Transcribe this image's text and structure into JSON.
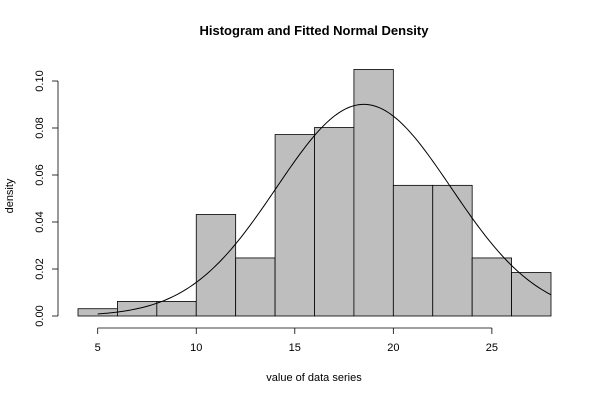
{
  "chart_data": {
    "type": "bar",
    "title": "Histogram and Fitted Normal Density",
    "xlabel": "value of data series",
    "ylabel": "density",
    "xlim": [
      4,
      28
    ],
    "ylim": [
      0,
      0.105
    ],
    "xticks": [
      5,
      10,
      15,
      20,
      25
    ],
    "yticks": [
      0.0,
      0.02,
      0.04,
      0.06,
      0.08,
      0.1
    ],
    "ytick_labels": [
      "0.00",
      "0.02",
      "0.04",
      "0.06",
      "0.08",
      "0.10"
    ],
    "grid": false,
    "bins": [
      {
        "from": 4,
        "to": 6,
        "density": 0.0031
      },
      {
        "from": 6,
        "to": 8,
        "density": 0.0062
      },
      {
        "from": 8,
        "to": 10,
        "density": 0.0062
      },
      {
        "from": 10,
        "to": 12,
        "density": 0.0432
      },
      {
        "from": 12,
        "to": 14,
        "density": 0.0247
      },
      {
        "from": 14,
        "to": 16,
        "density": 0.0772
      },
      {
        "from": 16,
        "to": 18,
        "density": 0.0802
      },
      {
        "from": 18,
        "to": 20,
        "density": 0.1049
      },
      {
        "from": 20,
        "to": 22,
        "density": 0.0556
      },
      {
        "from": 22,
        "to": 24,
        "density": 0.0556
      },
      {
        "from": 24,
        "to": 26,
        "density": 0.0247
      },
      {
        "from": 26,
        "to": 28,
        "density": 0.0185
      }
    ],
    "normal_fit": {
      "mean": 18.5,
      "sd": 4.43,
      "x_range": [
        5,
        28
      ]
    }
  }
}
